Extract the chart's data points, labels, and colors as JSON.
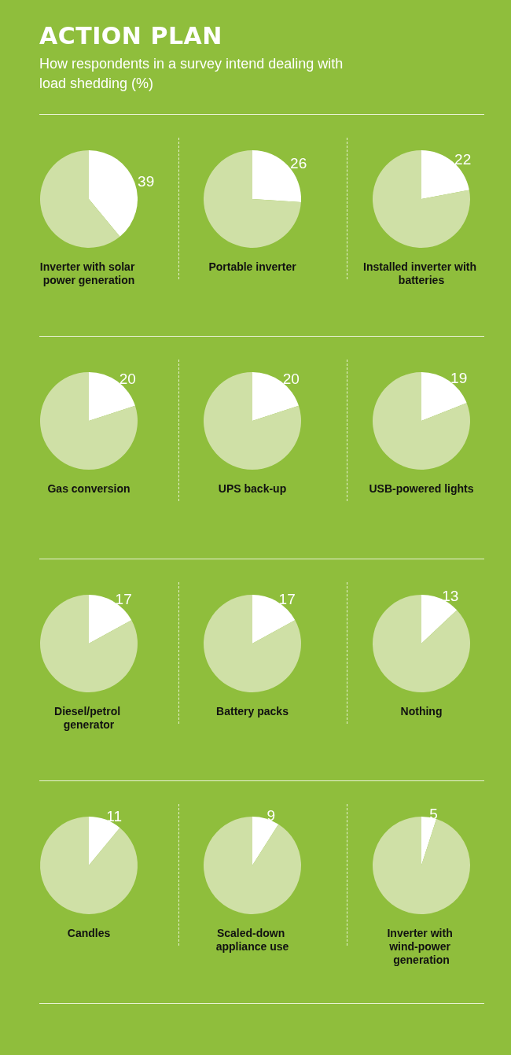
{
  "chart_data": [
    {
      "type": "other",
      "title": "ACTION PLAN",
      "subtitle": "How respondents in a survey intend dealing with load shedding (%)"
    },
    {
      "type": "pie",
      "title": "Inverter with solar power generation",
      "categories": [
        null,
        null
      ],
      "values": [
        39,
        61
      ],
      "colors": [
        "#ffffff",
        "#cfe0a6"
      ],
      "value_labels": [
        "39",
        null
      ]
    },
    {
      "type": "pie",
      "title": "Portable inverter",
      "categories": [
        null,
        null
      ],
      "values": [
        26,
        74
      ],
      "colors": [
        "#ffffff",
        "#cfe0a6"
      ],
      "value_labels": [
        "26",
        null
      ]
    },
    {
      "type": "pie",
      "title": "Installed inverter with batteries",
      "categories": [
        null,
        null
      ],
      "values": [
        22,
        78
      ],
      "colors": [
        "#ffffff",
        "#cfe0a6"
      ],
      "value_labels": [
        "22",
        null
      ]
    },
    {
      "type": "pie",
      "title": "Gas conversion",
      "categories": [
        null,
        null
      ],
      "values": [
        20,
        80
      ],
      "colors": [
        "#ffffff",
        "#cfe0a6"
      ],
      "value_labels": [
        "20",
        null
      ]
    },
    {
      "type": "pie",
      "title": "UPS back-up",
      "categories": [
        null,
        null
      ],
      "values": [
        20,
        80
      ],
      "colors": [
        "#ffffff",
        "#cfe0a6"
      ],
      "value_labels": [
        "20",
        null
      ]
    },
    {
      "type": "pie",
      "title": "USB-powered lights",
      "categories": [
        null,
        null
      ],
      "values": [
        19,
        81
      ],
      "colors": [
        "#ffffff",
        "#cfe0a6"
      ],
      "value_labels": [
        "19",
        null
      ]
    },
    {
      "type": "pie",
      "title": "Diesel/petrol generator",
      "categories": [
        null,
        null
      ],
      "values": [
        17,
        83
      ],
      "colors": [
        "#ffffff",
        "#cfe0a6"
      ],
      "value_labels": [
        "17",
        null
      ]
    },
    {
      "type": "pie",
      "title": "Battery packs",
      "categories": [
        null,
        null
      ],
      "values": [
        17,
        83
      ],
      "colors": [
        "#ffffff",
        "#cfe0a6"
      ],
      "value_labels": [
        "17",
        null
      ]
    },
    {
      "type": "pie",
      "title": "Nothing",
      "categories": [
        null,
        null
      ],
      "values": [
        13,
        87
      ],
      "colors": [
        "#ffffff",
        "#cfe0a6"
      ],
      "value_labels": [
        "13",
        null
      ]
    },
    {
      "type": "pie",
      "title": "Candles",
      "categories": [
        null,
        null
      ],
      "values": [
        11,
        89
      ],
      "colors": [
        "#ffffff",
        "#cfe0a6"
      ],
      "value_labels": [
        "11",
        null
      ]
    },
    {
      "type": "pie",
      "title": "Scaled-down appliance use",
      "categories": [
        null,
        null
      ],
      "values": [
        9,
        91
      ],
      "colors": [
        "#ffffff",
        "#cfe0a6"
      ],
      "value_labels": [
        "9",
        null
      ]
    },
    {
      "type": "pie",
      "title": "Inverter with wind-power generation",
      "categories": [
        null,
        null
      ],
      "values": [
        5,
        95
      ],
      "colors": [
        "#ffffff",
        "#cfe0a6"
      ],
      "value_labels": [
        "5",
        null
      ]
    }
  ]
}
